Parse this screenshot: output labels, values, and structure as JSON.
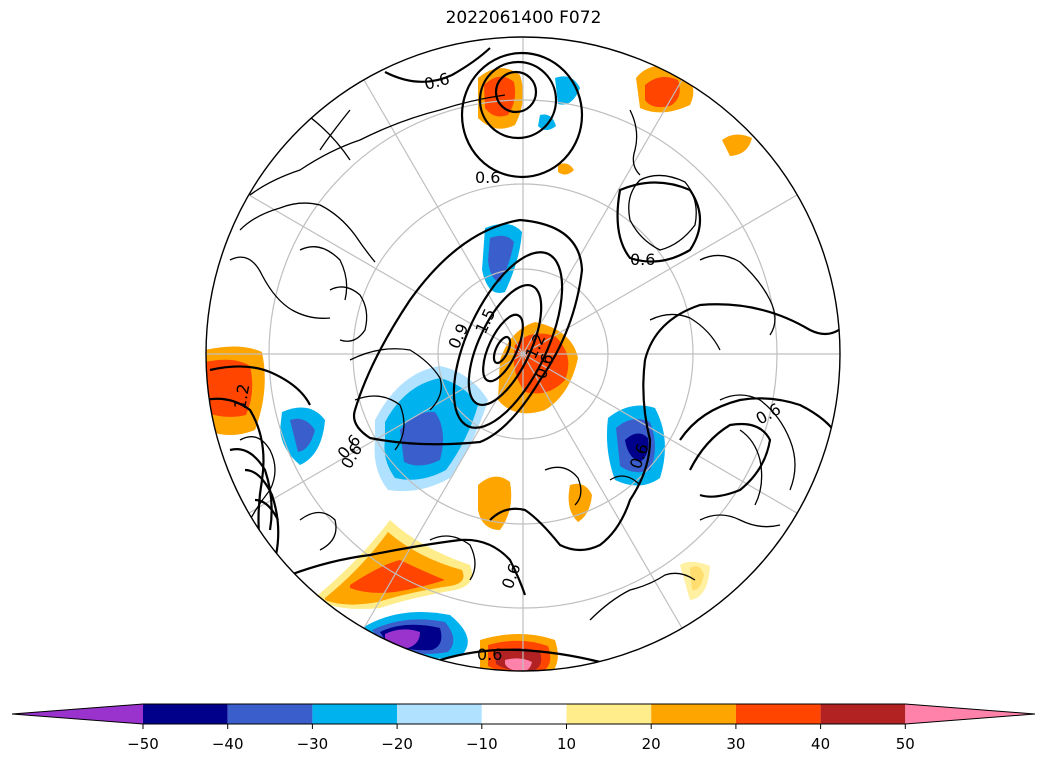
{
  "title": "2022061400 F072",
  "colorbar": {
    "extend": "both",
    "bins": [
      {
        "from": null,
        "to": -50,
        "color": "#9a32cd"
      },
      {
        "from": -50,
        "to": -40,
        "color": "#00008b"
      },
      {
        "from": -40,
        "to": -30,
        "color": "#3a5fcd"
      },
      {
        "from": -30,
        "to": -20,
        "color": "#00b2ee"
      },
      {
        "from": -20,
        "to": -10,
        "color": "#b0e2ff"
      },
      {
        "from": -10,
        "to": 10,
        "color": "#ffffff"
      },
      {
        "from": 10,
        "to": 20,
        "color": "#ffec8b"
      },
      {
        "from": 20,
        "to": 30,
        "color": "#ffa500"
      },
      {
        "from": 30,
        "to": 40,
        "color": "#ff4500"
      },
      {
        "from": 40,
        "to": 50,
        "color": "#b22222"
      },
      {
        "from": 50,
        "to": null,
        "color": "#ff82ab"
      }
    ],
    "ticks": [
      "−50",
      "−40",
      "−30",
      "−20",
      "−10",
      "10",
      "20",
      "30",
      "40",
      "50"
    ]
  },
  "contour_labels": [
    "0.6",
    "0.6",
    "0.6",
    "0.6",
    "0.9",
    "1.2",
    "1.5",
    "0.6",
    "0.6",
    "0.6",
    "1.2",
    "0.6",
    "0.6",
    "0.6"
  ]
}
